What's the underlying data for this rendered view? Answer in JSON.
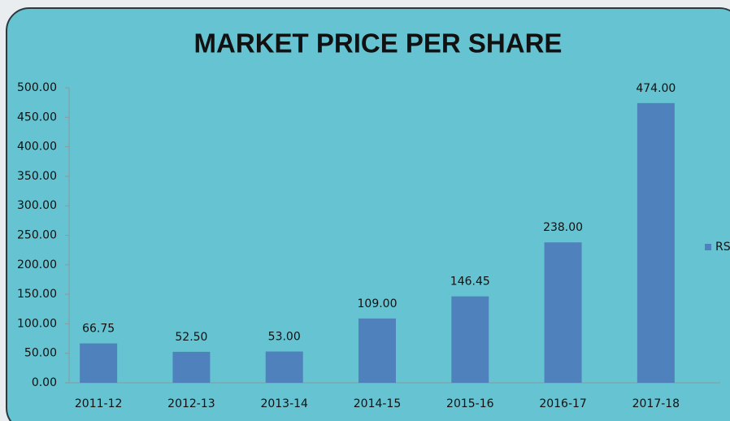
{
  "chart_data": {
    "type": "bar",
    "title": "MARKET PRICE PER SHARE",
    "categories": [
      "2011-12",
      "2012-13",
      "2013-14",
      "2014-15",
      "2015-16",
      "2016-17",
      "2017-18"
    ],
    "series": [
      {
        "name": "RS",
        "color": "#4f81bd",
        "values": [
          66.75,
          52.5,
          53,
          109,
          146.45,
          238,
          474
        ],
        "value_labels": [
          "66.75",
          "52.50",
          "53.00",
          "109.00",
          "146.45",
          "238.00",
          "474.00"
        ]
      }
    ],
    "ylim": [
      0,
      500
    ],
    "yticks": [
      {
        "value": 0,
        "label": "0.00"
      },
      {
        "value": 50,
        "label": "50.00"
      },
      {
        "value": 100,
        "label": "100.00"
      },
      {
        "value": 150,
        "label": "150.00"
      },
      {
        "value": 200,
        "label": "200.00"
      },
      {
        "value": 250,
        "label": "250.00"
      },
      {
        "value": 300,
        "label": "300.00"
      },
      {
        "value": 350,
        "label": "350.00"
      },
      {
        "value": 400,
        "label": "400.00"
      },
      {
        "value": 450,
        "label": "450.00"
      },
      {
        "value": 500,
        "label": "500.00"
      }
    ],
    "legend": "right"
  }
}
